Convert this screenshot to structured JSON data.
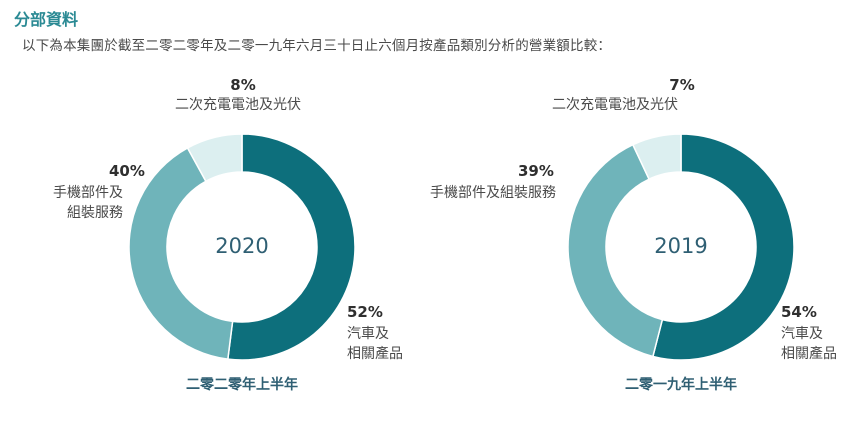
{
  "section_title": "分部資料",
  "description": "以下為本集團於截至二零二零年及二零一九年六月三十日止六個月按產品類別分析的營業額比較：",
  "colors": {
    "title": "#2b8a94",
    "automobile": "#0d6f7c",
    "handset": "#6fb4ba",
    "battery": "#dceff0"
  },
  "chart_data": [
    {
      "type": "pie",
      "center_label": "2020",
      "caption": "二零二零年上半年",
      "slices": [
        {
          "key": "automobile",
          "value": 52,
          "pct_label": "52%",
          "label_lines": [
            "汽車及",
            "相關產品"
          ]
        },
        {
          "key": "handset",
          "value": 40,
          "pct_label": "40%",
          "label_lines": [
            "手機部件及",
            "組裝服務"
          ]
        },
        {
          "key": "battery",
          "value": 8,
          "pct_label": "8%",
          "label_lines": [
            "二次充電電池及光伏"
          ]
        }
      ]
    },
    {
      "type": "pie",
      "center_label": "2019",
      "caption": "二零一九年上半年",
      "slices": [
        {
          "key": "automobile",
          "value": 54,
          "pct_label": "54%",
          "label_lines": [
            "汽車及",
            "相關產品"
          ]
        },
        {
          "key": "handset",
          "value": 39,
          "pct_label": "39%",
          "label_lines": [
            "手機部件及組裝服務"
          ]
        },
        {
          "key": "battery",
          "value": 7,
          "pct_label": "7%",
          "label_lines": [
            "二次充電電池及光伏"
          ]
        }
      ]
    }
  ]
}
